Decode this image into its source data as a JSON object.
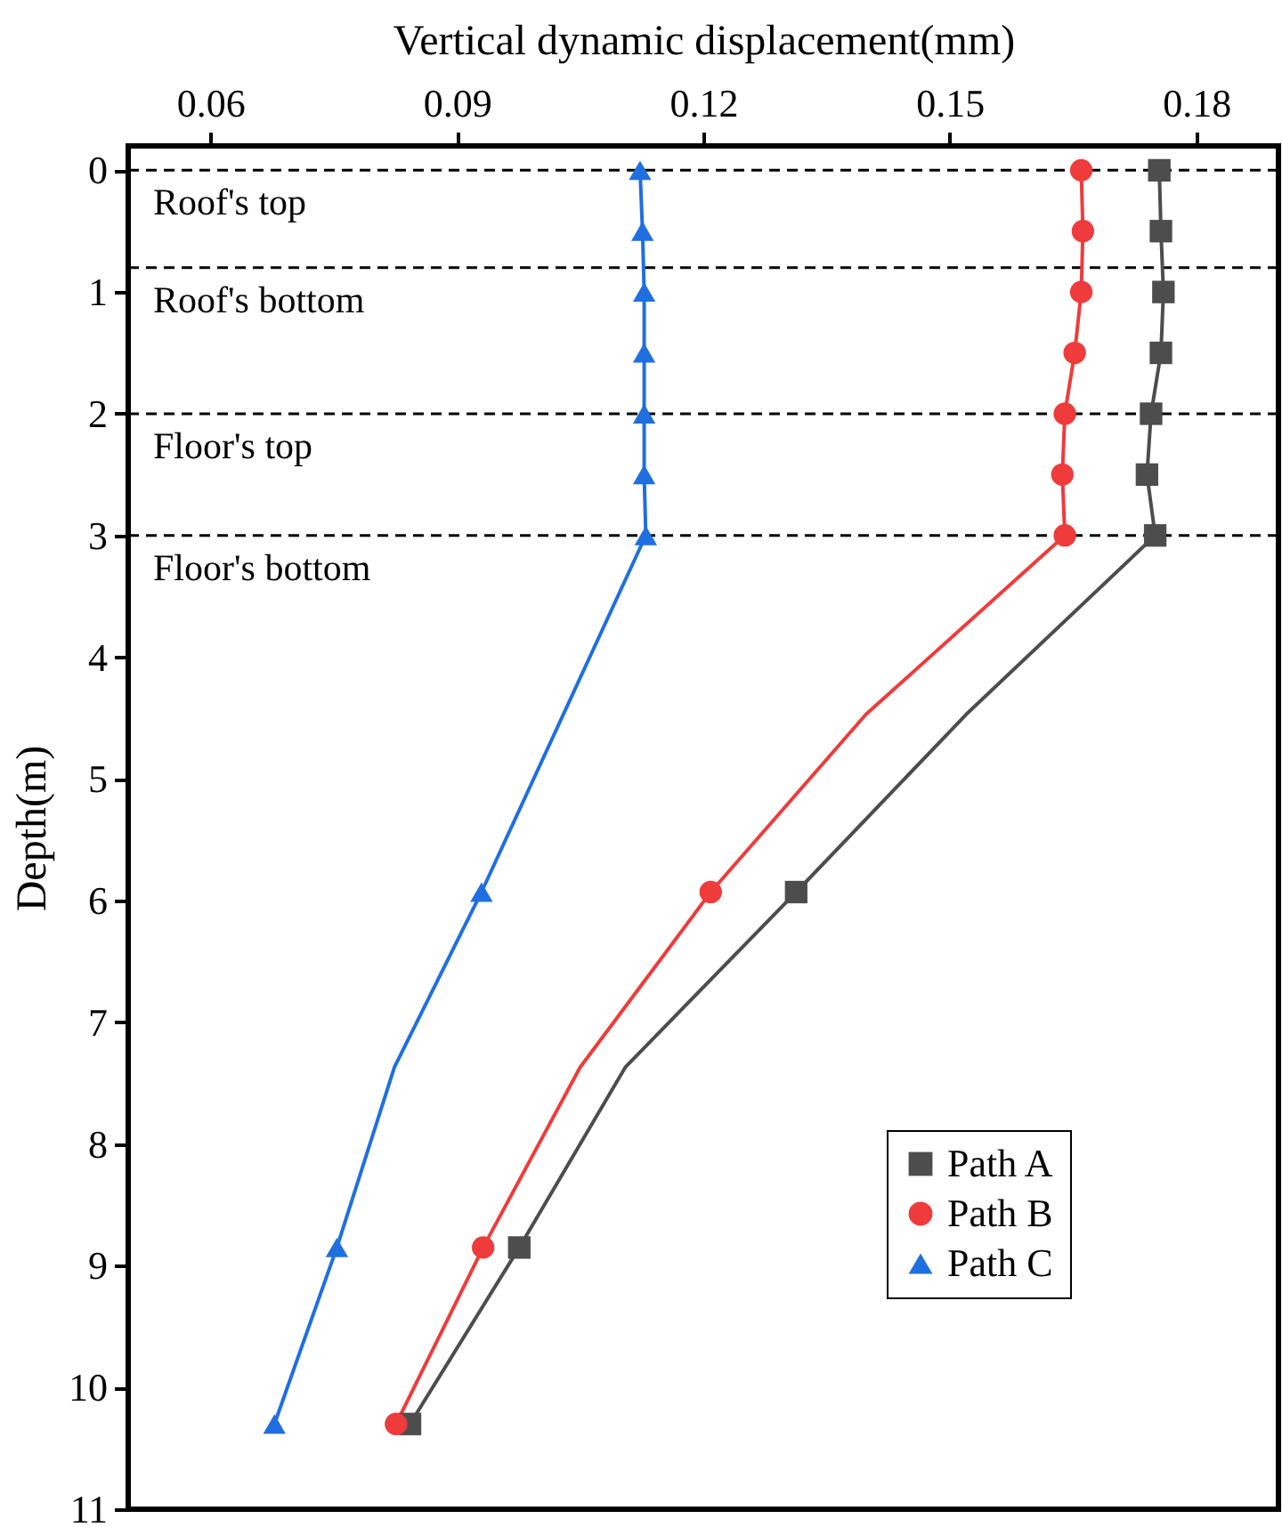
{
  "chart_data": {
    "type": "line",
    "xlabel": "Vertical dynamic displacement(mm)",
    "ylabel": "Depth(m)",
    "xlim": [
      0.05,
      0.19
    ],
    "xticks": [
      0.06,
      0.09,
      0.12,
      0.15,
      0.18
    ],
    "ylim": [
      11,
      -0.2
    ],
    "yticks": [
      0,
      1,
      2,
      3,
      4,
      5,
      6,
      7,
      8,
      9,
      10,
      11
    ],
    "grid": false,
    "legend": "bottom right",
    "series": [
      {
        "name": "Path A",
        "color": "#4d4d4d",
        "marker": "none",
        "x": [
          0.1755,
          0.1757,
          0.176,
          0.1757,
          0.1745,
          0.174,
          0.175,
          0.152,
          0.1313,
          0.1105,
          0.0976,
          0.0843
        ],
        "values": [
          0,
          0.5,
          1,
          1.5,
          2,
          2.5,
          3,
          4.47,
          5.93,
          7.37,
          8.85,
          10.3
        ]
      },
      {
        "name": "Path B",
        "color": "#ef3b3b",
        "marker": "none",
        "x": [
          0.166,
          0.1662,
          0.166,
          0.1652,
          0.164,
          0.1637,
          0.164,
          0.1398,
          0.1209,
          0.105,
          0.0932,
          0.0826
        ],
        "values": [
          0,
          0.5,
          1,
          1.5,
          2,
          2.5,
          3,
          4.47,
          5.93,
          7.37,
          8.85,
          10.3
        ]
      },
      {
        "name": "Path C",
        "color": "#1f6fe0",
        "marker": "none",
        "x": [
          0.1123,
          0.1126,
          0.1128,
          0.1128,
          0.1128,
          0.1128,
          0.113,
          0.093,
          0.0824,
          0.0754,
          0.0678
        ],
        "values": [
          0,
          0.5,
          1,
          1.5,
          2,
          2.5,
          3,
          5.93,
          7.37,
          8.85,
          10.3
        ]
      },
      {
        "type": "scatter",
        "color": "#4d4d4d",
        "marker": "square",
        "x": [
          0.1755,
          0.1757,
          0.176,
          0.1757,
          0.1745,
          0.174,
          0.175,
          0.1313,
          0.0976,
          0.0843
        ],
        "values": [
          0,
          0.5,
          1,
          1.5,
          2,
          2.5,
          3,
          5.93,
          8.85,
          10.3
        ]
      },
      {
        "type": "scatter",
        "color": "#ef3b3b",
        "marker": "circle",
        "x": [
          0.166,
          0.1662,
          0.166,
          0.1652,
          0.164,
          0.1637,
          0.164,
          0.1209,
          0.0932,
          0.0826
        ],
        "values": [
          0,
          0.5,
          1,
          1.5,
          2,
          2.5,
          3,
          5.93,
          8.85,
          10.3
        ]
      },
      {
        "type": "scatter",
        "color": "#1f6fe0",
        "marker": "triangle",
        "x": [
          0.1123,
          0.1126,
          0.1128,
          0.1128,
          0.1128,
          0.1128,
          0.113,
          0.093,
          0.0754,
          0.0678
        ],
        "values": [
          0,
          0.5,
          1,
          1.5,
          2,
          2.5,
          3,
          5.93,
          8.85,
          10.3
        ]
      }
    ],
    "ref_lines": [
      {
        "axis": "y",
        "value": 0,
        "label": "Roof's top",
        "color": "#000000",
        "line_style": "dashed"
      },
      {
        "axis": "y",
        "value": 0.8,
        "label": "Roof's bottom",
        "color": "#000000",
        "line_style": "dashed"
      },
      {
        "axis": "y",
        "value": 2,
        "label": "Floor's top",
        "color": "#000000",
        "line_style": "dashed"
      },
      {
        "axis": "y",
        "value": 3,
        "label": "Floor's bottom",
        "color": "#000000",
        "line_style": "dashed"
      }
    ]
  }
}
